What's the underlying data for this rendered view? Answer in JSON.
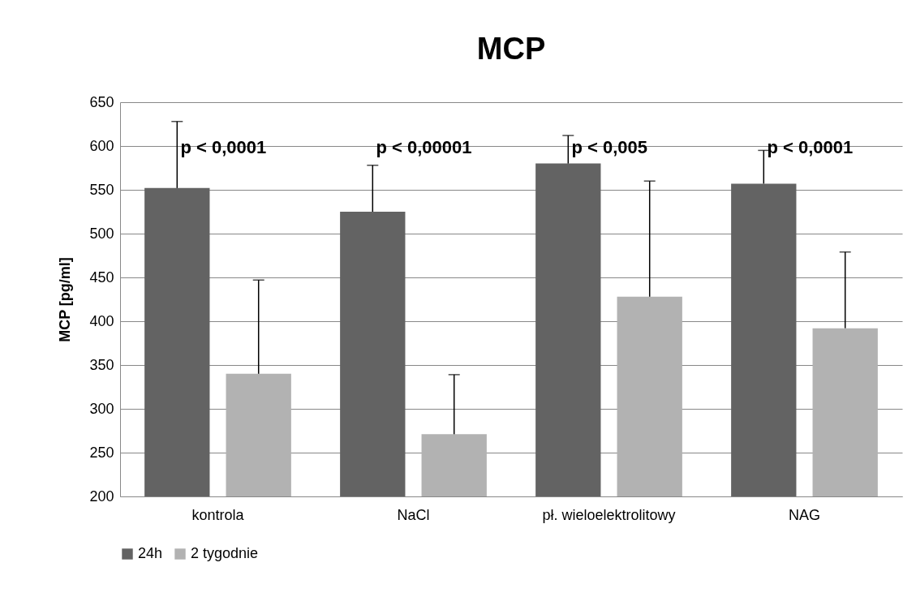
{
  "chart_data": {
    "type": "bar",
    "title": "MCP",
    "ylabel": "MCP [pg/ml]",
    "categories": [
      "kontrola",
      "NaCl",
      "pł. wieloelektrolitowy",
      "NAG"
    ],
    "series": [
      {
        "name": "24h",
        "color": "#636363",
        "values": [
          552,
          525,
          580,
          557
        ],
        "errors": [
          [
            552,
            628
          ],
          [
            525,
            578
          ],
          [
            580,
            612
          ],
          [
            557,
            595
          ]
        ]
      },
      {
        "name": "2 tygodnie",
        "color": "#b2b2b2",
        "values": [
          340,
          271,
          428,
          392
        ],
        "errors": [
          [
            340,
            447
          ],
          [
            271,
            339
          ],
          [
            428,
            560
          ],
          [
            392,
            479
          ]
        ]
      }
    ],
    "ylim": [
      200,
      650
    ],
    "yticks": [
      200,
      250,
      300,
      350,
      400,
      450,
      500,
      550,
      600,
      650
    ],
    "grid": "y",
    "legend": "bottom",
    "annotations": [
      "p < 0,0001",
      "p < 0,00001",
      "p < 0,005",
      "p < 0,0001"
    ]
  }
}
